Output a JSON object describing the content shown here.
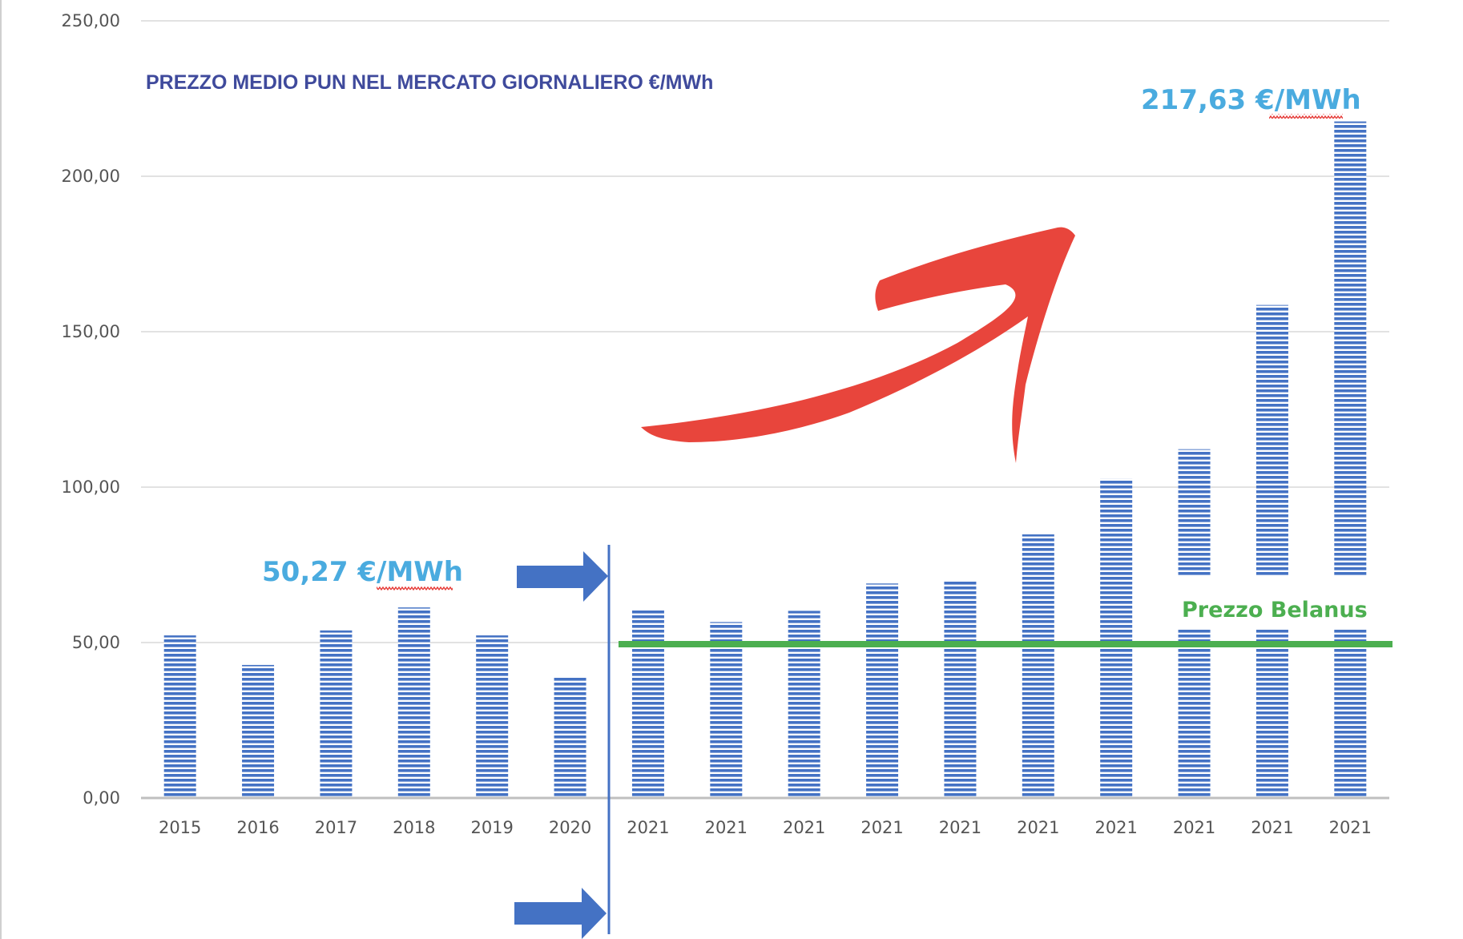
{
  "chart_data": {
    "type": "bar",
    "title": "PREZZO MEDIO PUN NEL MERCATO GIORNALIERO €/MWh",
    "xlabel": "",
    "ylabel": "",
    "ylim": [
      0,
      250
    ],
    "yticks": [
      "0,00",
      "50,00",
      "100,00",
      "150,00",
      "200,00",
      "250,00"
    ],
    "ytick_values": [
      0,
      50,
      100,
      150,
      200,
      250
    ],
    "grid": true,
    "legend": "none",
    "categories": [
      "2015",
      "2016",
      "2017",
      "2018",
      "2019",
      "2020",
      "2021",
      "2021",
      "2021",
      "2021",
      "2021",
      "2021",
      "2021",
      "2021",
      "2021",
      "2021"
    ],
    "series": [
      {
        "values": [
          52.3,
          42.8,
          53.9,
          61.3,
          52.3,
          38.9,
          60.7,
          56.6,
          60.2,
          69.0,
          70.0,
          84.8,
          102.7,
          112.2,
          158.6,
          217.63
        ],
        "color": "#4472c4"
      }
    ],
    "annotations": {
      "left_value": "50,27 €/MWh",
      "right_value": "217,63 €/MWh",
      "reference_line_label": "Prezzo Belanus",
      "reference_line_value": 50,
      "reference_line_color": "#4caf50",
      "divider_color": "#4472c4",
      "arrow_color": "#e8453c",
      "underline_color": "#e53935"
    }
  }
}
